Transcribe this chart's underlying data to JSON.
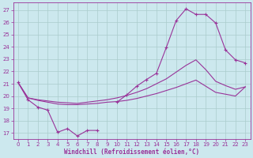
{
  "bg_color": "#cce8ee",
  "grid_color": "#aacccc",
  "line_color": "#993399",
  "xlabel": "Windchill (Refroidissement éolien,°C)",
  "x_ticks": [
    0,
    1,
    2,
    3,
    4,
    5,
    6,
    7,
    8,
    9,
    10,
    11,
    12,
    13,
    14,
    15,
    16,
    17,
    18,
    19,
    20,
    21,
    22,
    23
  ],
  "y_ticks": [
    17,
    18,
    19,
    20,
    21,
    22,
    23,
    24,
    25,
    26,
    27
  ],
  "ylim": [
    16.5,
    27.6
  ],
  "xlim": [
    -0.5,
    23.5
  ],
  "series_main": [
    21.1,
    19.7,
    19.1,
    18.85,
    17.05,
    17.35,
    16.75,
    17.2,
    17.2,
    null,
    19.5,
    20.1,
    20.8,
    21.35,
    21.85,
    23.95,
    26.15,
    27.1,
    26.65,
    26.65,
    25.95,
    23.75,
    22.95,
    22.7
  ],
  "series_mid": [
    21.1,
    19.85,
    19.7,
    19.6,
    19.5,
    19.45,
    19.4,
    19.5,
    19.6,
    19.7,
    19.85,
    20.05,
    20.3,
    20.6,
    21.0,
    21.4,
    21.95,
    22.5,
    22.95,
    22.15,
    21.2,
    20.85,
    20.55,
    20.75
  ],
  "series_low": [
    21.1,
    19.85,
    19.65,
    19.5,
    19.35,
    19.3,
    19.3,
    19.35,
    19.4,
    19.5,
    19.55,
    19.65,
    19.8,
    20.0,
    20.2,
    20.45,
    20.7,
    21.0,
    21.3,
    20.8,
    20.3,
    20.15,
    20.0,
    20.75
  ]
}
